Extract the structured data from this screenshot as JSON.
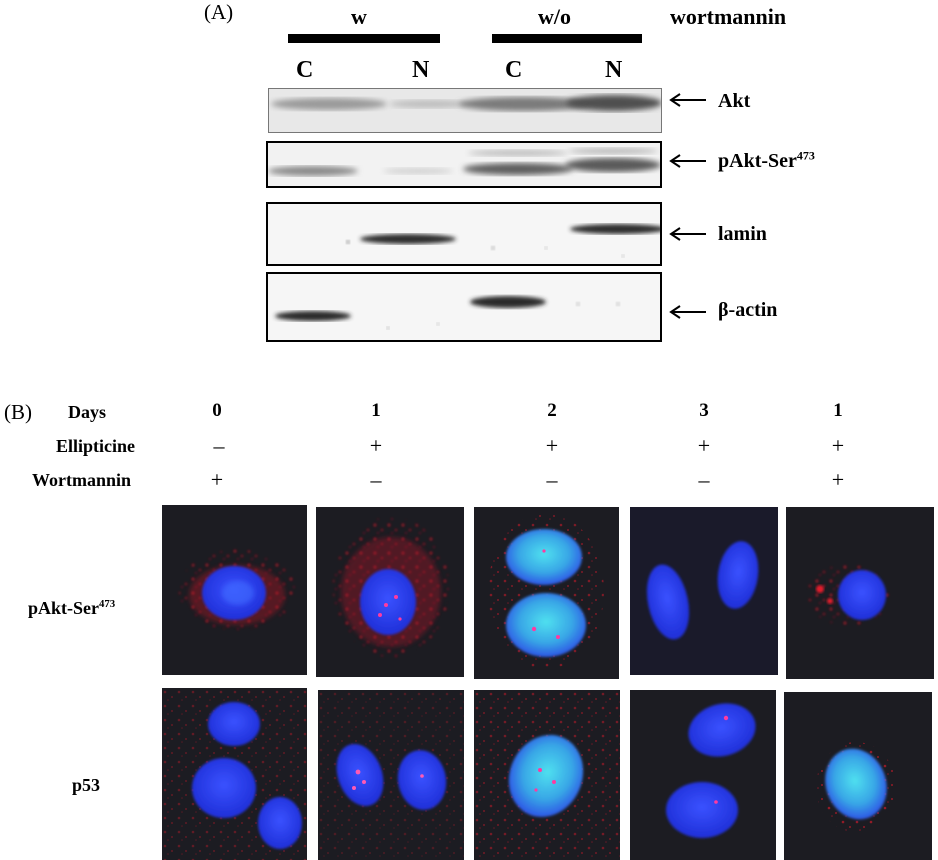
{
  "panel_a": {
    "label": "(A)",
    "treatment_w": "w",
    "treatment_wo": "w/o",
    "treatment_agent": "wortmannin",
    "lanes": [
      "C",
      "N",
      "C",
      "N"
    ],
    "bands": [
      {
        "name": "Akt",
        "sup": ""
      },
      {
        "name": "pAkt-Ser",
        "sup": "473"
      },
      {
        "name": "lamin",
        "sup": ""
      },
      {
        "name": "β-actin",
        "sup": ""
      }
    ]
  },
  "panel_b": {
    "label": "(B)",
    "row_headers": [
      "Days",
      "Ellipticine",
      "Wortmannin"
    ],
    "days": [
      "0",
      "1",
      "2",
      "3",
      "1"
    ],
    "ellipticine": [
      "–",
      "+",
      "+",
      "+",
      "+"
    ],
    "wortmannin": [
      "+",
      "–",
      "–",
      "–",
      "+"
    ],
    "image_rows": [
      {
        "name": "pAkt-Ser",
        "sup": "473"
      },
      {
        "name": "p53",
        "sup": ""
      }
    ]
  },
  "colors": {
    "nucleus": "#2a3cf0",
    "nucleus_bright": "#37c0e8",
    "signal": "#e01a2a",
    "micro_bg": "#1c1c22",
    "blot_bg": "#f3f3f3",
    "band": "#2a2a2a"
  }
}
